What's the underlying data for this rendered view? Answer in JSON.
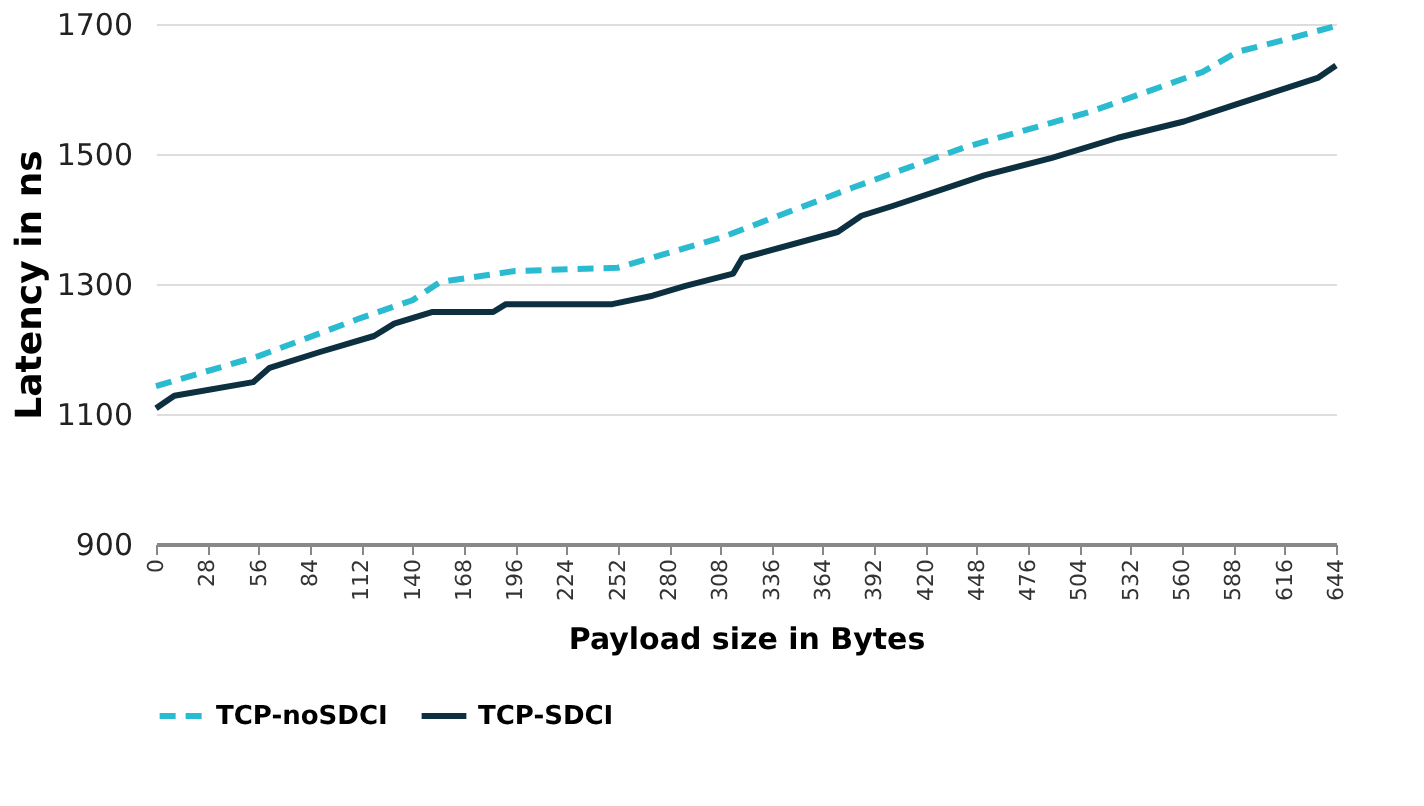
{
  "chart_data": {
    "type": "line",
    "xlabel": "Payload size in Bytes",
    "ylabel": "Latency in ns",
    "xlim": [
      0,
      644
    ],
    "xticks": [
      0,
      28,
      56,
      84,
      112,
      140,
      168,
      196,
      224,
      252,
      280,
      308,
      336,
      364,
      392,
      420,
      448,
      476,
      504,
      532,
      560,
      588,
      616,
      644
    ],
    "ylim": [
      900,
      1700
    ],
    "yticks": [
      900,
      1100,
      1300,
      1500,
      1700
    ],
    "grid": "y",
    "legend": "bottom",
    "series": [
      {
        "name": "TCP-noSDCI",
        "color": "#2bbbd0",
        "line_style": "dashed",
        "x": [
          0,
          56,
          112,
          140,
          155,
          196,
          252,
          308,
          380,
          441,
          510,
          571,
          590,
          615,
          644
        ],
        "values": [
          1143,
          1189,
          1248,
          1275,
          1303,
          1320,
          1325,
          1371,
          1448,
          1510,
          1565,
          1626,
          1657,
          1675,
          1697
        ]
      },
      {
        "name": "TCP-SDCI",
        "color": "#0d3040",
        "line_style": "solid",
        "x": [
          0,
          10,
          53,
          62,
          89,
          119,
          130,
          151,
          184,
          191,
          249,
          271,
          289,
          315,
          320,
          372,
          385,
          402,
          452,
          489,
          525,
          561,
          587,
          634,
          644
        ],
        "values": [
          1109,
          1128,
          1149,
          1171,
          1195,
          1220,
          1239,
          1257,
          1257,
          1269,
          1269,
          1282,
          1297,
          1316,
          1340,
          1380,
          1405,
          1420,
          1467,
          1494,
          1525,
          1550,
          1574,
          1617,
          1636
        ]
      }
    ]
  }
}
